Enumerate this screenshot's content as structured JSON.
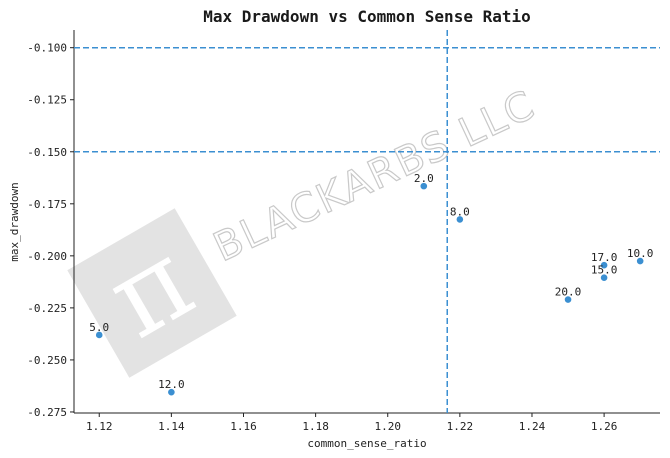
{
  "chart_data": {
    "type": "scatter",
    "title": "Max Drawdown vs Common Sense Ratio",
    "xlabel": "common_sense_ratio",
    "ylabel": "max_drawdown",
    "xlim": [
      1.113,
      1.2755
    ],
    "ylim": [
      -0.2755,
      -0.0915
    ],
    "xticks": [
      1.12,
      1.14,
      1.16,
      1.18,
      1.2,
      1.22,
      1.24,
      1.26
    ],
    "xtick_labels": [
      "1.12",
      "1.14",
      "1.16",
      "1.18",
      "1.20",
      "1.22",
      "1.24",
      "1.26"
    ],
    "yticks": [
      -0.1,
      -0.125,
      -0.15,
      -0.175,
      -0.2,
      -0.225,
      -0.25,
      -0.275
    ],
    "ytick_labels": [
      "-0.100",
      "-0.125",
      "-0.150",
      "-0.175",
      "-0.200",
      "-0.225",
      "-0.250",
      "-0.275"
    ],
    "grid": false,
    "point_color": "#3b8fd1",
    "reference_line_color": "#3b8fd1",
    "reference_lines": {
      "horizontal": [
        -0.1,
        -0.15
      ],
      "vertical": [
        1.2165
      ]
    },
    "points": [
      {
        "label": "5.0",
        "x": 1.12,
        "y": -0.238
      },
      {
        "label": "12.0",
        "x": 1.14,
        "y": -0.2655
      },
      {
        "label": "2.0",
        "x": 1.21,
        "y": -0.1665
      },
      {
        "label": "8.0",
        "x": 1.22,
        "y": -0.1825
      },
      {
        "label": "20.0",
        "x": 1.25,
        "y": -0.221
      },
      {
        "label": "17.0",
        "x": 1.26,
        "y": -0.2045
      },
      {
        "label": "15.0",
        "x": 1.26,
        "y": -0.2105
      },
      {
        "label": "10.0",
        "x": 1.27,
        "y": -0.2025
      }
    ]
  },
  "watermark": {
    "text": "BLACKARBS LLC",
    "logo_glyph": "π"
  }
}
